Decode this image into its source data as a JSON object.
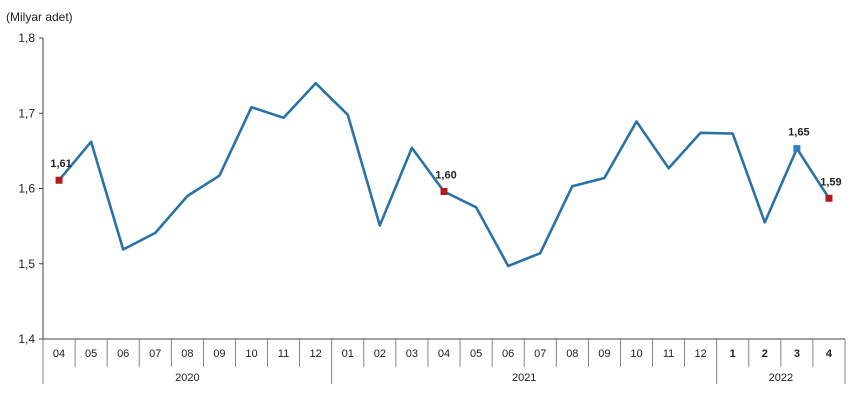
{
  "chart_data": {
    "type": "line",
    "ylabel": "(Milyar adet)",
    "ylim": [
      1.4,
      1.8
    ],
    "yticks": [
      "1,4",
      "1,5",
      "1,6",
      "1,7",
      "1,8"
    ],
    "grid": false,
    "categories": [
      "04",
      "05",
      "06",
      "07",
      "08",
      "09",
      "10",
      "11",
      "12",
      "01",
      "02",
      "03",
      "04",
      "05",
      "06",
      "07",
      "08",
      "09",
      "10",
      "11",
      "12",
      "1",
      "2",
      "3",
      "4"
    ],
    "years": [
      {
        "label": "2020",
        "start": 0,
        "end": 8
      },
      {
        "label": "2021",
        "start": 9,
        "end": 20
      },
      {
        "label": "2022",
        "start": 21,
        "end": 24
      }
    ],
    "series": [
      {
        "values": [
          1.611,
          1.662,
          1.519,
          1.541,
          1.59,
          1.617,
          1.708,
          1.694,
          1.74,
          1.698,
          1.551,
          1.654,
          1.596,
          1.575,
          1.497,
          1.514,
          1.603,
          1.614,
          1.689,
          1.627,
          1.674,
          1.673,
          1.555,
          1.653,
          1.587
        ],
        "color": "#2a72a6"
      }
    ],
    "annotations": [
      {
        "index": 0,
        "text": "1,61",
        "marker_color": "#b11d1d"
      },
      {
        "index": 12,
        "text": "1,60",
        "marker_color": "#b11d1d"
      },
      {
        "index": 23,
        "text": "1,65",
        "marker_color": "#2f7fbf"
      },
      {
        "index": 24,
        "text": "1,59",
        "marker_color": "#b11d1d"
      }
    ]
  }
}
